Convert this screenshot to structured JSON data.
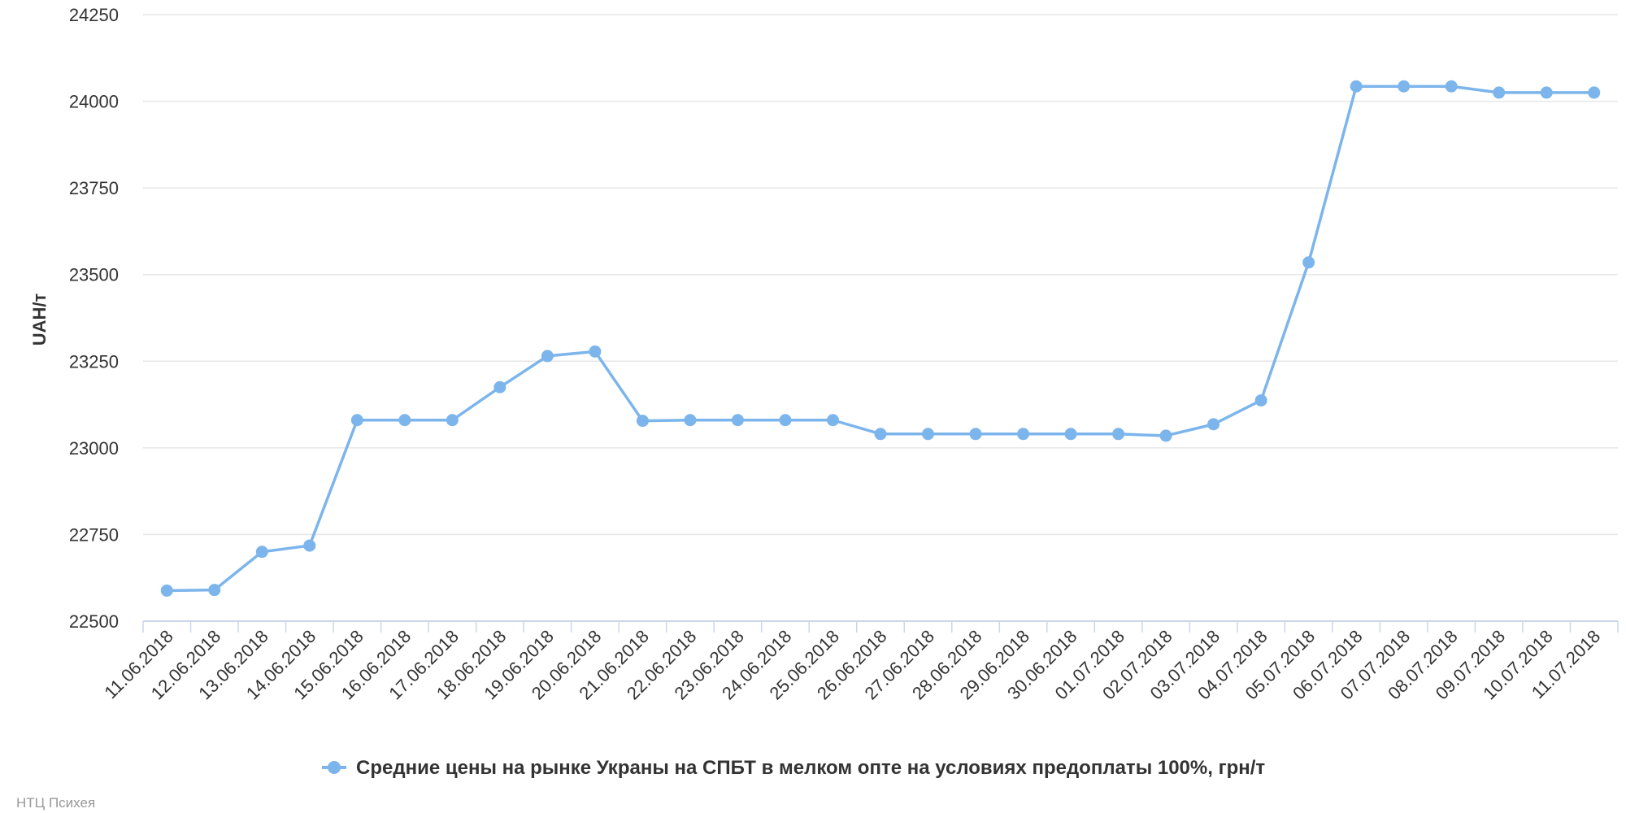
{
  "chart_data": {
    "type": "line",
    "title": "",
    "xlabel": "",
    "ylabel": "UAH/т",
    "ylim": [
      22500,
      24250
    ],
    "yticks": [
      22500,
      22750,
      23000,
      23250,
      23500,
      23750,
      24000,
      24250
    ],
    "grid": true,
    "legend_position": "bottom-center",
    "categories": [
      "11.06.2018",
      "12.06.2018",
      "13.06.2018",
      "14.06.2018",
      "15.06.2018",
      "16.06.2018",
      "17.06.2018",
      "18.06.2018",
      "19.06.2018",
      "20.06.2018",
      "21.06.2018",
      "22.06.2018",
      "23.06.2018",
      "24.06.2018",
      "25.06.2018",
      "26.06.2018",
      "27.06.2018",
      "28.06.2018",
      "29.06.2018",
      "30.06.2018",
      "01.07.2018",
      "02.07.2018",
      "03.07.2018",
      "04.07.2018",
      "05.07.2018",
      "06.07.2018",
      "07.07.2018",
      "08.07.2018",
      "09.07.2018",
      "10.07.2018",
      "11.07.2018"
    ],
    "series": [
      {
        "name": "Средние цены на рынке Украны на СПБТ в мелком опте на условиях предоплаты 100%, грн/т",
        "color": "#7cb5ec",
        "values": [
          22588,
          22590,
          22700,
          22718,
          23080,
          23080,
          23080,
          23175,
          23265,
          23278,
          23078,
          23080,
          23080,
          23080,
          23080,
          23040,
          23040,
          23040,
          23040,
          23040,
          23040,
          23035,
          23068,
          23137,
          23535,
          24043,
          24043,
          24043,
          24025,
          24025,
          24025
        ]
      }
    ]
  },
  "colors": {
    "series": "#7cb5ec",
    "grid": "#e6e6e6",
    "axis": "#ccd6eb",
    "text": "#333333",
    "credit": "#999999"
  },
  "credit": "НТЦ Психея"
}
